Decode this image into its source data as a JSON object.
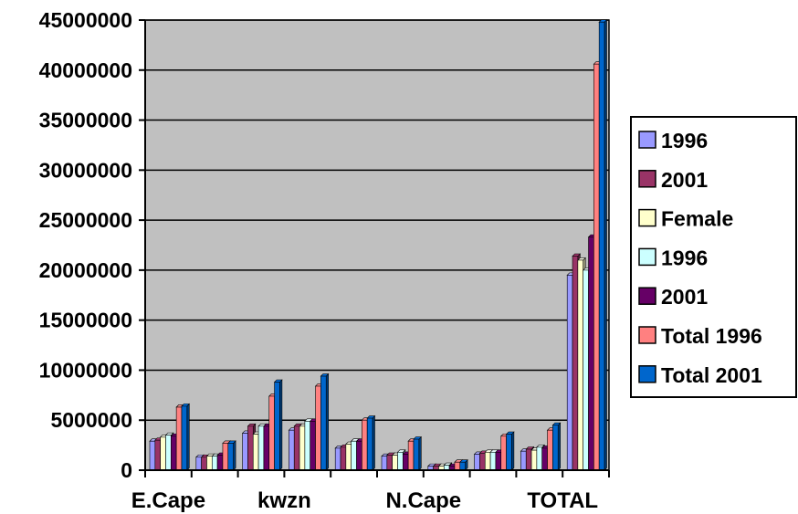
{
  "chart_data": {
    "type": "bar",
    "title": "",
    "xlabel": "",
    "ylabel": "",
    "ylim": [
      0,
      45000000
    ],
    "yticks": [
      "0",
      "5000000",
      "10000000",
      "15000000",
      "20000000",
      "25000000",
      "30000000",
      "35000000",
      "40000000",
      "45000000"
    ],
    "grid": true,
    "legend_position": "right",
    "categories": [
      "E.Cape",
      "",
      "",
      "kwzn",
      "",
      "",
      "N.Cape",
      "",
      "",
      "TOTAL"
    ],
    "category_labels_shown": [
      "E.Cape",
      "kwzn",
      "N.Cape",
      "TOTAL"
    ],
    "plot_background": "#c0c0c0",
    "series": [
      {
        "name": "1996",
        "color": "#9999ff",
        "values": [
          2900000,
          1300000,
          3700000,
          4000000,
          2200000,
          1400000,
          400000,
          1600000,
          1900000,
          19500000
        ]
      },
      {
        "name": "2001",
        "color": "#993366",
        "values": [
          3000000,
          1300000,
          4400000,
          4400000,
          2300000,
          1500000,
          400000,
          1700000,
          2100000,
          21400000
        ]
      },
      {
        "name": "Female",
        "color": "#ffffcc",
        "values": [
          3300000,
          1400000,
          3600000,
          4400000,
          2600000,
          1500000,
          400000,
          1800000,
          2000000,
          21000000
        ]
      },
      {
        "name": "1996",
        "color": "#ccffff",
        "values": [
          3500000,
          1400000,
          4400000,
          4900000,
          2900000,
          1800000,
          500000,
          1800000,
          2300000,
          20000000
        ]
      },
      {
        "name": "2001",
        "color": "#660066",
        "values": [
          3400000,
          1500000,
          4400000,
          4900000,
          2900000,
          1600000,
          400000,
          1800000,
          2200000,
          23300000
        ]
      },
      {
        "name": "Total 1996",
        "color": "#ff8080",
        "values": [
          6300000,
          2700000,
          7400000,
          8400000,
          5000000,
          2900000,
          800000,
          3400000,
          4000000,
          40600000
        ]
      },
      {
        "name": "Total 2001",
        "color": "#0066cc",
        "values": [
          6400000,
          2700000,
          8800000,
          9400000,
          5200000,
          3100000,
          800000,
          3600000,
          4500000,
          44800000
        ]
      }
    ]
  }
}
